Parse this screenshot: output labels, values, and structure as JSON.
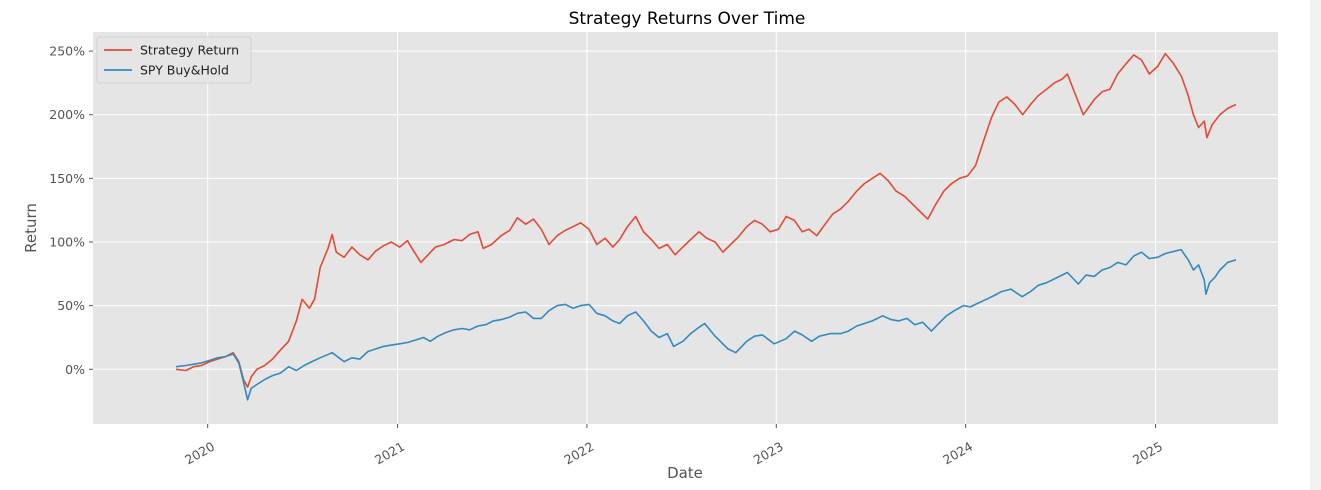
{
  "chart_data": {
    "type": "line",
    "title": "Strategy Returns Over Time",
    "xlabel": "Date",
    "ylabel": "Return",
    "x_ticks": [
      "2020",
      "2021",
      "2022",
      "2023",
      "2024",
      "2025"
    ],
    "y_ticks": [
      "0%",
      "50%",
      "100%",
      "150%",
      "200%",
      "250%"
    ],
    "xlim": [
      "2019-05-25",
      "2025-08-25"
    ],
    "ylim": [
      -43,
      265
    ],
    "grid": true,
    "legend_position": "top-left",
    "series": [
      {
        "name": "Strategy Return",
        "color": "#e24a33",
        "points": [
          [
            "2019-11-01",
            0
          ],
          [
            "2019-11-20",
            -1
          ],
          [
            "2019-12-05",
            2
          ],
          [
            "2019-12-20",
            3
          ],
          [
            "2020-01-05",
            6
          ],
          [
            "2020-01-20",
            8
          ],
          [
            "2020-02-05",
            10
          ],
          [
            "2020-02-19",
            13
          ],
          [
            "2020-03-01",
            6
          ],
          [
            "2020-03-10",
            -8
          ],
          [
            "2020-03-18",
            -14
          ],
          [
            "2020-03-25",
            -6
          ],
          [
            "2020-04-05",
            0
          ],
          [
            "2020-04-20",
            3
          ],
          [
            "2020-05-05",
            8
          ],
          [
            "2020-05-20",
            15
          ],
          [
            "2020-06-05",
            22
          ],
          [
            "2020-06-20",
            38
          ],
          [
            "2020-07-01",
            55
          ],
          [
            "2020-07-15",
            48
          ],
          [
            "2020-07-25",
            55
          ],
          [
            "2020-08-05",
            80
          ],
          [
            "2020-08-20",
            95
          ],
          [
            "2020-08-28",
            106
          ],
          [
            "2020-09-05",
            92
          ],
          [
            "2020-09-20",
            88
          ],
          [
            "2020-10-05",
            96
          ],
          [
            "2020-10-20",
            90
          ],
          [
            "2020-11-05",
            86
          ],
          [
            "2020-11-20",
            93
          ],
          [
            "2020-12-05",
            97
          ],
          [
            "2020-12-20",
            100
          ],
          [
            "2021-01-05",
            96
          ],
          [
            "2021-01-20",
            101
          ],
          [
            "2021-02-01",
            93
          ],
          [
            "2021-02-15",
            84
          ],
          [
            "2021-03-01",
            90
          ],
          [
            "2021-03-15",
            96
          ],
          [
            "2021-04-01",
            98
          ],
          [
            "2021-04-20",
            102
          ],
          [
            "2021-05-05",
            101
          ],
          [
            "2021-05-20",
            106
          ],
          [
            "2021-06-05",
            108
          ],
          [
            "2021-06-15",
            95
          ],
          [
            "2021-07-01",
            98
          ],
          [
            "2021-07-20",
            105
          ],
          [
            "2021-08-05",
            109
          ],
          [
            "2021-08-20",
            119
          ],
          [
            "2021-09-05",
            114
          ],
          [
            "2021-09-20",
            118
          ],
          [
            "2021-10-05",
            110
          ],
          [
            "2021-10-20",
            98
          ],
          [
            "2021-11-05",
            105
          ],
          [
            "2021-11-20",
            109
          ],
          [
            "2021-12-05",
            112
          ],
          [
            "2021-12-20",
            115
          ],
          [
            "2022-01-05",
            110
          ],
          [
            "2022-01-20",
            98
          ],
          [
            "2022-02-05",
            103
          ],
          [
            "2022-02-20",
            96
          ],
          [
            "2022-03-05",
            102
          ],
          [
            "2022-03-20",
            112
          ],
          [
            "2022-04-05",
            120
          ],
          [
            "2022-04-20",
            108
          ],
          [
            "2022-05-05",
            102
          ],
          [
            "2022-05-20",
            95
          ],
          [
            "2022-06-05",
            98
          ],
          [
            "2022-06-20",
            90
          ],
          [
            "2022-07-05",
            96
          ],
          [
            "2022-07-20",
            102
          ],
          [
            "2022-08-05",
            108
          ],
          [
            "2022-08-20",
            103
          ],
          [
            "2022-09-05",
            100
          ],
          [
            "2022-09-20",
            92
          ],
          [
            "2022-10-05",
            98
          ],
          [
            "2022-10-20",
            104
          ],
          [
            "2022-11-05",
            112
          ],
          [
            "2022-11-20",
            117
          ],
          [
            "2022-12-05",
            114
          ],
          [
            "2022-12-20",
            108
          ],
          [
            "2023-01-05",
            110
          ],
          [
            "2023-01-20",
            120
          ],
          [
            "2023-02-05",
            117
          ],
          [
            "2023-02-20",
            108
          ],
          [
            "2023-03-05",
            110
          ],
          [
            "2023-03-20",
            105
          ],
          [
            "2023-04-05",
            114
          ],
          [
            "2023-04-20",
            122
          ],
          [
            "2023-05-05",
            126
          ],
          [
            "2023-05-20",
            132
          ],
          [
            "2023-06-05",
            140
          ],
          [
            "2023-06-20",
            146
          ],
          [
            "2023-07-05",
            150
          ],
          [
            "2023-07-20",
            154
          ],
          [
            "2023-08-05",
            148
          ],
          [
            "2023-08-20",
            140
          ],
          [
            "2023-09-05",
            136
          ],
          [
            "2023-09-20",
            130
          ],
          [
            "2023-10-05",
            124
          ],
          [
            "2023-10-20",
            118
          ],
          [
            "2023-11-05",
            130
          ],
          [
            "2023-11-20",
            140
          ],
          [
            "2023-12-05",
            146
          ],
          [
            "2023-12-20",
            150
          ],
          [
            "2024-01-05",
            152
          ],
          [
            "2024-01-20",
            160
          ],
          [
            "2024-02-05",
            180
          ],
          [
            "2024-02-20",
            198
          ],
          [
            "2024-03-05",
            210
          ],
          [
            "2024-03-20",
            214
          ],
          [
            "2024-04-05",
            208
          ],
          [
            "2024-04-20",
            200
          ],
          [
            "2024-05-05",
            208
          ],
          [
            "2024-05-20",
            215
          ],
          [
            "2024-06-05",
            220
          ],
          [
            "2024-06-20",
            225
          ],
          [
            "2024-07-05",
            228
          ],
          [
            "2024-07-15",
            232
          ],
          [
            "2024-08-05",
            210
          ],
          [
            "2024-08-15",
            200
          ],
          [
            "2024-09-05",
            212
          ],
          [
            "2024-09-20",
            218
          ],
          [
            "2024-10-05",
            220
          ],
          [
            "2024-10-20",
            232
          ],
          [
            "2024-11-05",
            240
          ],
          [
            "2024-11-20",
            247
          ],
          [
            "2024-12-05",
            243
          ],
          [
            "2024-12-20",
            232
          ],
          [
            "2025-01-05",
            238
          ],
          [
            "2025-01-20",
            248
          ],
          [
            "2025-02-05",
            240
          ],
          [
            "2025-02-20",
            230
          ],
          [
            "2025-03-05",
            215
          ],
          [
            "2025-03-15",
            200
          ],
          [
            "2025-03-25",
            190
          ],
          [
            "2025-04-05",
            195
          ],
          [
            "2025-04-10",
            182
          ],
          [
            "2025-04-20",
            192
          ],
          [
            "2025-05-05",
            200
          ],
          [
            "2025-05-20",
            205
          ],
          [
            "2025-06-05",
            208
          ]
        ]
      },
      {
        "name": "SPY Buy&Hold",
        "color": "#348abd",
        "points": [
          [
            "2019-11-01",
            2
          ],
          [
            "2019-11-20",
            3
          ],
          [
            "2019-12-05",
            4
          ],
          [
            "2019-12-20",
            5
          ],
          [
            "2020-01-05",
            7
          ],
          [
            "2020-01-20",
            9
          ],
          [
            "2020-02-05",
            10
          ],
          [
            "2020-02-19",
            12
          ],
          [
            "2020-03-01",
            5
          ],
          [
            "2020-03-10",
            -10
          ],
          [
            "2020-03-18",
            -24
          ],
          [
            "2020-03-25",
            -15
          ],
          [
            "2020-04-05",
            -12
          ],
          [
            "2020-04-20",
            -8
          ],
          [
            "2020-05-05",
            -5
          ],
          [
            "2020-05-20",
            -3
          ],
          [
            "2020-06-05",
            2
          ],
          [
            "2020-06-20",
            -1
          ],
          [
            "2020-07-05",
            3
          ],
          [
            "2020-07-20",
            6
          ],
          [
            "2020-08-05",
            9
          ],
          [
            "2020-08-28",
            13
          ],
          [
            "2020-09-20",
            6
          ],
          [
            "2020-10-05",
            9
          ],
          [
            "2020-10-20",
            8
          ],
          [
            "2020-11-05",
            14
          ],
          [
            "2020-11-20",
            16
          ],
          [
            "2020-12-05",
            18
          ],
          [
            "2020-12-20",
            19
          ],
          [
            "2021-01-05",
            20
          ],
          [
            "2021-01-20",
            21
          ],
          [
            "2021-02-05",
            23
          ],
          [
            "2021-02-20",
            25
          ],
          [
            "2021-03-05",
            22
          ],
          [
            "2021-03-20",
            26
          ],
          [
            "2021-04-05",
            29
          ],
          [
            "2021-04-20",
            31
          ],
          [
            "2021-05-05",
            32
          ],
          [
            "2021-05-20",
            31
          ],
          [
            "2021-06-05",
            34
          ],
          [
            "2021-06-20",
            35
          ],
          [
            "2021-07-05",
            38
          ],
          [
            "2021-07-20",
            39
          ],
          [
            "2021-08-05",
            41
          ],
          [
            "2021-08-20",
            44
          ],
          [
            "2021-09-05",
            45
          ],
          [
            "2021-09-20",
            40
          ],
          [
            "2021-10-05",
            40
          ],
          [
            "2021-10-20",
            46
          ],
          [
            "2021-11-05",
            50
          ],
          [
            "2021-11-20",
            51
          ],
          [
            "2021-12-05",
            48
          ],
          [
            "2021-12-20",
            50
          ],
          [
            "2022-01-05",
            51
          ],
          [
            "2022-01-20",
            44
          ],
          [
            "2022-02-05",
            42
          ],
          [
            "2022-02-20",
            38
          ],
          [
            "2022-03-05",
            36
          ],
          [
            "2022-03-20",
            42
          ],
          [
            "2022-04-05",
            45
          ],
          [
            "2022-04-20",
            38
          ],
          [
            "2022-05-05",
            30
          ],
          [
            "2022-05-20",
            25
          ],
          [
            "2022-06-05",
            28
          ],
          [
            "2022-06-17",
            18
          ],
          [
            "2022-07-05",
            22
          ],
          [
            "2022-07-20",
            28
          ],
          [
            "2022-08-05",
            33
          ],
          [
            "2022-08-16",
            36
          ],
          [
            "2022-09-05",
            26
          ],
          [
            "2022-09-30",
            16
          ],
          [
            "2022-10-15",
            13
          ],
          [
            "2022-11-05",
            22
          ],
          [
            "2022-11-20",
            26
          ],
          [
            "2022-12-05",
            27
          ],
          [
            "2022-12-28",
            20
          ],
          [
            "2023-01-20",
            24
          ],
          [
            "2023-02-05",
            30
          ],
          [
            "2023-02-20",
            27
          ],
          [
            "2023-03-10",
            22
          ],
          [
            "2023-03-25",
            26
          ],
          [
            "2023-04-15",
            28
          ],
          [
            "2023-05-05",
            28
          ],
          [
            "2023-05-20",
            30
          ],
          [
            "2023-06-05",
            34
          ],
          [
            "2023-06-20",
            36
          ],
          [
            "2023-07-05",
            38
          ],
          [
            "2023-07-25",
            42
          ],
          [
            "2023-08-10",
            39
          ],
          [
            "2023-08-25",
            38
          ],
          [
            "2023-09-10",
            40
          ],
          [
            "2023-09-25",
            35
          ],
          [
            "2023-10-10",
            37
          ],
          [
            "2023-10-27",
            30
          ],
          [
            "2023-11-10",
            36
          ],
          [
            "2023-11-25",
            42
          ],
          [
            "2023-12-10",
            46
          ],
          [
            "2023-12-28",
            50
          ],
          [
            "2024-01-10",
            49
          ],
          [
            "2024-01-25",
            52
          ],
          [
            "2024-02-10",
            55
          ],
          [
            "2024-02-25",
            58
          ],
          [
            "2024-03-10",
            61
          ],
          [
            "2024-03-28",
            63
          ],
          [
            "2024-04-19",
            57
          ],
          [
            "2024-05-05",
            61
          ],
          [
            "2024-05-20",
            66
          ],
          [
            "2024-06-05",
            68
          ],
          [
            "2024-06-20",
            71
          ],
          [
            "2024-07-15",
            76
          ],
          [
            "2024-08-05",
            67
          ],
          [
            "2024-08-20",
            74
          ],
          [
            "2024-09-05",
            73
          ],
          [
            "2024-09-20",
            78
          ],
          [
            "2024-10-05",
            80
          ],
          [
            "2024-10-20",
            84
          ],
          [
            "2024-11-05",
            82
          ],
          [
            "2024-11-20",
            89
          ],
          [
            "2024-12-05",
            92
          ],
          [
            "2024-12-20",
            87
          ],
          [
            "2025-01-05",
            88
          ],
          [
            "2025-01-20",
            91
          ],
          [
            "2025-02-19",
            94
          ],
          [
            "2025-03-05",
            86
          ],
          [
            "2025-03-15",
            78
          ],
          [
            "2025-03-25",
            82
          ],
          [
            "2025-04-05",
            70
          ],
          [
            "2025-04-08",
            59
          ],
          [
            "2025-04-15",
            68
          ],
          [
            "2025-04-25",
            72
          ],
          [
            "2025-05-05",
            78
          ],
          [
            "2025-05-20",
            84
          ],
          [
            "2025-06-05",
            86
          ]
        ]
      }
    ]
  }
}
